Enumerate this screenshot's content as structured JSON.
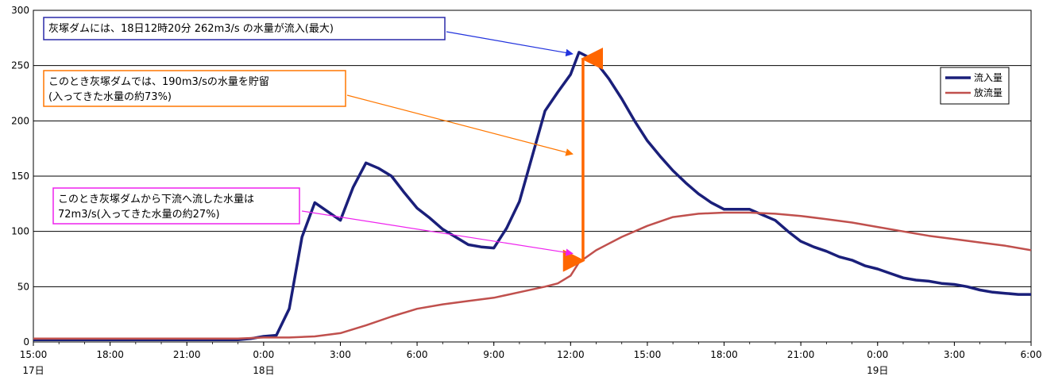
{
  "chart_data": {
    "type": "line",
    "ylim": [
      0,
      300
    ],
    "yticks": [
      0,
      50,
      100,
      150,
      200,
      250,
      300
    ],
    "xlim": [
      0,
      39
    ],
    "x_tick_hours": [
      0,
      3,
      6,
      9,
      12,
      15,
      18,
      21,
      24,
      27,
      30,
      33,
      36,
      39
    ],
    "x_tick_labels": [
      "15:00",
      "18:00",
      "21:00",
      "0:00",
      "3:00",
      "6:00",
      "9:00",
      "12:00",
      "15:00",
      "18:00",
      "21:00",
      "0:00",
      "3:00",
      "6:00"
    ],
    "date_labels": [
      {
        "hour": 0,
        "text": "17日"
      },
      {
        "hour": 9,
        "text": "18日"
      },
      {
        "hour": 33,
        "text": "19日"
      }
    ],
    "grid": true,
    "legend_position": "right",
    "series": [
      {
        "name": "流入量",
        "color": "#1a1f7a",
        "points": [
          [
            0,
            2
          ],
          [
            1,
            2
          ],
          [
            2,
            2
          ],
          [
            3,
            2
          ],
          [
            4,
            2
          ],
          [
            5,
            2
          ],
          [
            6,
            2
          ],
          [
            7,
            2
          ],
          [
            8,
            2
          ],
          [
            8.5,
            3
          ],
          [
            9,
            5
          ],
          [
            9.5,
            6
          ],
          [
            10,
            30
          ],
          [
            10.5,
            95
          ],
          [
            11,
            126
          ],
          [
            11.5,
            118
          ],
          [
            12,
            110
          ],
          [
            12.5,
            140
          ],
          [
            13,
            162
          ],
          [
            13.5,
            157
          ],
          [
            14,
            150
          ],
          [
            14.5,
            135
          ],
          [
            15,
            121
          ],
          [
            15.5,
            112
          ],
          [
            16,
            102
          ],
          [
            16.5,
            95
          ],
          [
            17,
            88
          ],
          [
            17.5,
            86
          ],
          [
            18,
            85
          ],
          [
            18.5,
            103
          ],
          [
            19,
            127
          ],
          [
            19.5,
            168
          ],
          [
            20,
            209
          ],
          [
            20.5,
            226
          ],
          [
            21,
            242
          ],
          [
            21.33,
            262
          ],
          [
            21.67,
            258
          ],
          [
            22,
            253
          ],
          [
            22.5,
            238
          ],
          [
            23,
            220
          ],
          [
            23.5,
            200
          ],
          [
            24,
            182
          ],
          [
            24.5,
            168
          ],
          [
            25,
            155
          ],
          [
            25.5,
            144
          ],
          [
            26,
            134
          ],
          [
            26.5,
            126
          ],
          [
            27,
            120
          ],
          [
            27.5,
            120
          ],
          [
            28,
            120
          ],
          [
            28.5,
            115
          ],
          [
            29,
            110
          ],
          [
            29.5,
            100
          ],
          [
            30,
            91
          ],
          [
            30.5,
            86
          ],
          [
            31,
            82
          ],
          [
            31.5,
            77
          ],
          [
            32,
            74
          ],
          [
            32.5,
            69
          ],
          [
            33,
            66
          ],
          [
            33.5,
            62
          ],
          [
            34,
            58
          ],
          [
            34.5,
            56
          ],
          [
            35,
            55
          ],
          [
            35.5,
            53
          ],
          [
            36,
            52
          ],
          [
            36.5,
            50
          ],
          [
            37,
            47
          ],
          [
            37.5,
            45
          ],
          [
            38,
            44
          ],
          [
            38.5,
            43
          ],
          [
            39,
            43
          ]
        ]
      },
      {
        "name": "放流量",
        "color": "#c0504d",
        "points": [
          [
            0,
            3
          ],
          [
            3,
            3
          ],
          [
            6,
            3
          ],
          [
            8,
            3
          ],
          [
            9,
            4
          ],
          [
            10,
            4
          ],
          [
            11,
            5
          ],
          [
            12,
            8
          ],
          [
            13,
            15
          ],
          [
            14,
            23
          ],
          [
            15,
            30
          ],
          [
            16,
            34
          ],
          [
            17,
            37
          ],
          [
            18,
            40
          ],
          [
            19,
            45
          ],
          [
            20,
            50
          ],
          [
            20.5,
            53
          ],
          [
            21,
            60
          ],
          [
            21.33,
            72
          ],
          [
            22,
            83
          ],
          [
            23,
            95
          ],
          [
            24,
            105
          ],
          [
            25,
            113
          ],
          [
            26,
            116
          ],
          [
            27,
            117
          ],
          [
            28,
            117
          ],
          [
            29,
            116
          ],
          [
            30,
            114
          ],
          [
            31,
            111
          ],
          [
            32,
            108
          ],
          [
            33,
            104
          ],
          [
            34,
            100
          ],
          [
            35,
            96
          ],
          [
            36,
            93
          ],
          [
            37,
            90
          ],
          [
            38,
            87
          ],
          [
            39,
            83
          ]
        ]
      }
    ],
    "annotations": [
      {
        "id": "peak",
        "lines": [
          "灰塚ダムには、18日12時20分 262m3/s の水量が流入(最大)"
        ],
        "border": "#2a2aa8",
        "arrow": "#2233dd",
        "target": [
          21.33,
          262
        ]
      },
      {
        "id": "storage",
        "lines": [
          "このとき灰塚ダムでは、190m3/sの水量を貯留",
          "(入ってきた水量の約73%)"
        ],
        "border": "#ff7700",
        "arrow": "#ff7700",
        "target": [
          21.33,
          170
        ]
      },
      {
        "id": "release",
        "lines": [
          "このとき灰塚ダムから下流へ流した水量は",
          "72m3/s(入ってきた水量の約27%)"
        ],
        "border": "#ee22ee",
        "arrow": "#ee22ee",
        "target": [
          21.33,
          80
        ]
      }
    ],
    "bracket": {
      "hour": 21.33,
      "from": 262,
      "to": 72,
      "color": "#ff6600"
    }
  }
}
